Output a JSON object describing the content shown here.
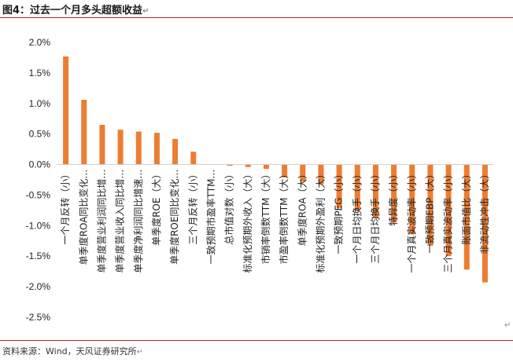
{
  "figure": {
    "title": "图4：过去一个月多头超额收益",
    "source": "资料来源：Wind，天风证券研究所"
  },
  "chart_data": {
    "type": "bar",
    "title": "",
    "xlabel": "",
    "ylabel": "",
    "ylim": [
      -2.5,
      2.0
    ],
    "yticks": [
      2.0,
      1.5,
      1.0,
      0.5,
      0.0,
      -0.5,
      -1.0,
      -1.5,
      -2.0,
      -2.5
    ],
    "ytick_labels": [
      "2.0%",
      "1.5%",
      "1.0%",
      "0.5%",
      "0.0%",
      "-0.5%",
      "-1.0%",
      "-1.5%",
      "-2.0%",
      "-2.5%"
    ],
    "grid": false,
    "legend": "none",
    "bar_color": "#ED7D31",
    "categories": [
      "一个月反转（小）",
      "单季度ROA同比变化…",
      "单季度营业利润同比增…",
      "单季度营业收入同比增…",
      "单季度净利润同比增速…",
      "单季度ROE（大）",
      "单季度ROE同比变化…",
      "三个月反转（小）",
      "一致预期市盈率TTM…",
      "总市值对数（小）",
      "标准化预期外收入（大）",
      "市销率倒数TTM（大）",
      "市盈率倒数TTM（大）",
      "单季度ROA（大）",
      "标准化预期外盈利（大）",
      "一致预期PEG（小）",
      "一个月日均换手（小）",
      "三个月日均换手（小）",
      "特异度（小）",
      "一个月真实波动率（小）",
      "一致预期EBP（大）",
      "三个月真实波动率（小）",
      "账面市值比（大）",
      "非流动性冲击（大）"
    ],
    "values": [
      1.77,
      1.06,
      0.65,
      0.57,
      0.54,
      0.52,
      0.42,
      0.21,
      0.0,
      -0.02,
      -0.04,
      -0.07,
      -0.21,
      -0.28,
      -0.32,
      -0.71,
      -0.75,
      -0.88,
      -0.95,
      -1.14,
      -1.33,
      -1.5,
      -1.72,
      -1.93
    ]
  }
}
